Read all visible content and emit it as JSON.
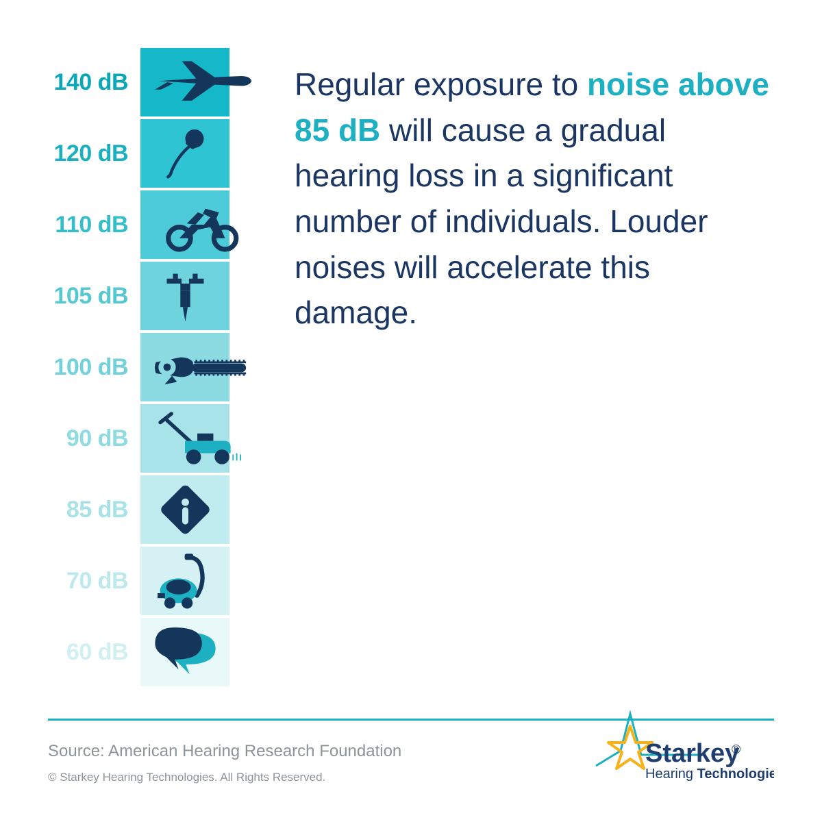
{
  "scale": [
    {
      "label": "140 dB",
      "label_color": "#0aa7b8",
      "box_color": "#14b8c8",
      "icon": "airplane",
      "icon_color": "#14365a"
    },
    {
      "label": "120 dB",
      "label_color": "#1bb0c0",
      "box_color": "#2fc4d4",
      "icon": "microphone",
      "icon_color": "#14365a"
    },
    {
      "label": "110 dB",
      "label_color": "#35bdc9",
      "box_color": "#4dcbd8",
      "icon": "motorcycle",
      "icon_color": "#14365a"
    },
    {
      "label": "105 dB",
      "label_color": "#56c8d2",
      "box_color": "#6fd3dd",
      "icon": "jackhammer",
      "icon_color": "#14365a"
    },
    {
      "label": "100 dB",
      "label_color": "#72d1d9",
      "box_color": "#8cdbe2",
      "icon": "chainsaw",
      "icon_color": "#14365a"
    },
    {
      "label": "90 dB",
      "label_color": "#8fdbe1",
      "box_color": "#a7e3e8",
      "icon": "mower",
      "icon_color": "#14365a"
    },
    {
      "label": "85 dB",
      "label_color": "#a7e2e7",
      "box_color": "#c0ebef",
      "icon": "warning",
      "icon_color": "#14365a"
    },
    {
      "label": "70 dB",
      "label_color": "#bde9ed",
      "box_color": "#d5f1f4",
      "icon": "vacuum",
      "icon_color": "#14365a"
    },
    {
      "label": "60 dB",
      "label_color": "#d2eff2",
      "box_color": "#e9f8f9",
      "icon": "speech",
      "icon_color": "#14365a"
    }
  ],
  "text": {
    "part1": "Regular exposure to ",
    "highlight": "noise above 85 dB",
    "part2": " will cause a gradual hearing loss in a significant number of individuals. Louder noises will accelerate this damage.",
    "body_color": "#1b3663",
    "highlight_color": "#1cb0c2",
    "highlight_weight": 700
  },
  "divider_color": "#1cb0c2",
  "footer": {
    "source": "Source: American Hearing Research Foundation",
    "source_color": "#8d9499",
    "copyright": "© Starkey Hearing Technologies. All Rights Reserved.",
    "copyright_color": "#8d9499"
  },
  "logo": {
    "name": "Starkey",
    "sub_pre": "Hearing ",
    "sub_bold": "Technologies",
    "star_color": "#f6b21a",
    "text_color": "#1f3d6e",
    "accent_color": "#1cb0c2"
  }
}
